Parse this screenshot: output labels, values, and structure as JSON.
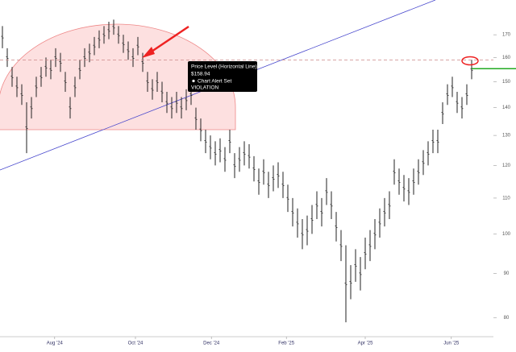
{
  "chart_data": {
    "type": "ohlc",
    "log_scale": true,
    "color": "#222222",
    "ylim": [
      75.7,
      186.5
    ],
    "yticks": [
      80,
      90,
      100,
      110,
      120,
      130,
      140,
      150,
      160,
      170
    ],
    "xlim": [
      -0.5,
      97.5
    ],
    "xticks": [
      {
        "value": 10.8,
        "label": "Aug '24"
      },
      {
        "value": 27.5,
        "label": "Oct '24"
      },
      {
        "value": 43.2,
        "label": "Dec '24"
      },
      {
        "value": 58.7,
        "label": "Feb '25"
      },
      {
        "value": 75,
        "label": "Apr '25"
      },
      {
        "value": 92.8,
        "label": "Jun '25"
      }
    ],
    "high": [
      174,
      164,
      156,
      152,
      149,
      142,
      144,
      152,
      156,
      160,
      159,
      164,
      162,
      154,
      144,
      152,
      159,
      164,
      166,
      169,
      172,
      174,
      176,
      177,
      174,
      170,
      167,
      164,
      169,
      162,
      154,
      151,
      154,
      150,
      146,
      144,
      146,
      144,
      147,
      149,
      140,
      136,
      132,
      130,
      128,
      129,
      126,
      132,
      124,
      126,
      128,
      127,
      123,
      119,
      122,
      118,
      120,
      121,
      118,
      114,
      110,
      107,
      104,
      105,
      108,
      112,
      110,
      116,
      112,
      106,
      101,
      97,
      92,
      96,
      94,
      99,
      101,
      104,
      107,
      110,
      112,
      122,
      119,
      117,
      116,
      119,
      122,
      125,
      128,
      132,
      132,
      142,
      149,
      152,
      146,
      144,
      149,
      159
    ],
    "low": [
      164,
      156,
      148,
      144,
      141,
      124,
      136,
      144,
      148,
      152,
      151,
      156,
      154,
      146,
      136,
      144,
      151,
      156,
      158,
      161,
      164,
      166,
      168,
      170,
      166,
      162,
      159,
      156,
      161,
      154,
      146,
      143,
      146,
      142,
      138,
      136,
      138,
      136,
      139,
      141,
      132,
      128,
      124,
      122,
      120,
      121,
      118,
      124,
      116,
      118,
      120,
      119,
      115,
      111,
      114,
      110,
      112,
      113,
      110,
      106,
      102,
      99,
      96,
      97,
      100,
      104,
      102,
      108,
      104,
      98,
      93,
      79,
      84,
      88,
      86,
      91,
      93,
      96,
      99,
      102,
      104,
      114,
      111,
      109,
      108,
      111,
      114,
      117,
      120,
      124,
      124,
      134,
      141,
      144,
      138,
      136,
      141,
      151
    ],
    "alert_level": 158.94,
    "green_level": 155.3,
    "tooltip": {
      "title": "Price Level (Horizontal Line)",
      "price": "$158.94",
      "status": "Chart Alert Set",
      "result": "VIOLATION"
    }
  }
}
